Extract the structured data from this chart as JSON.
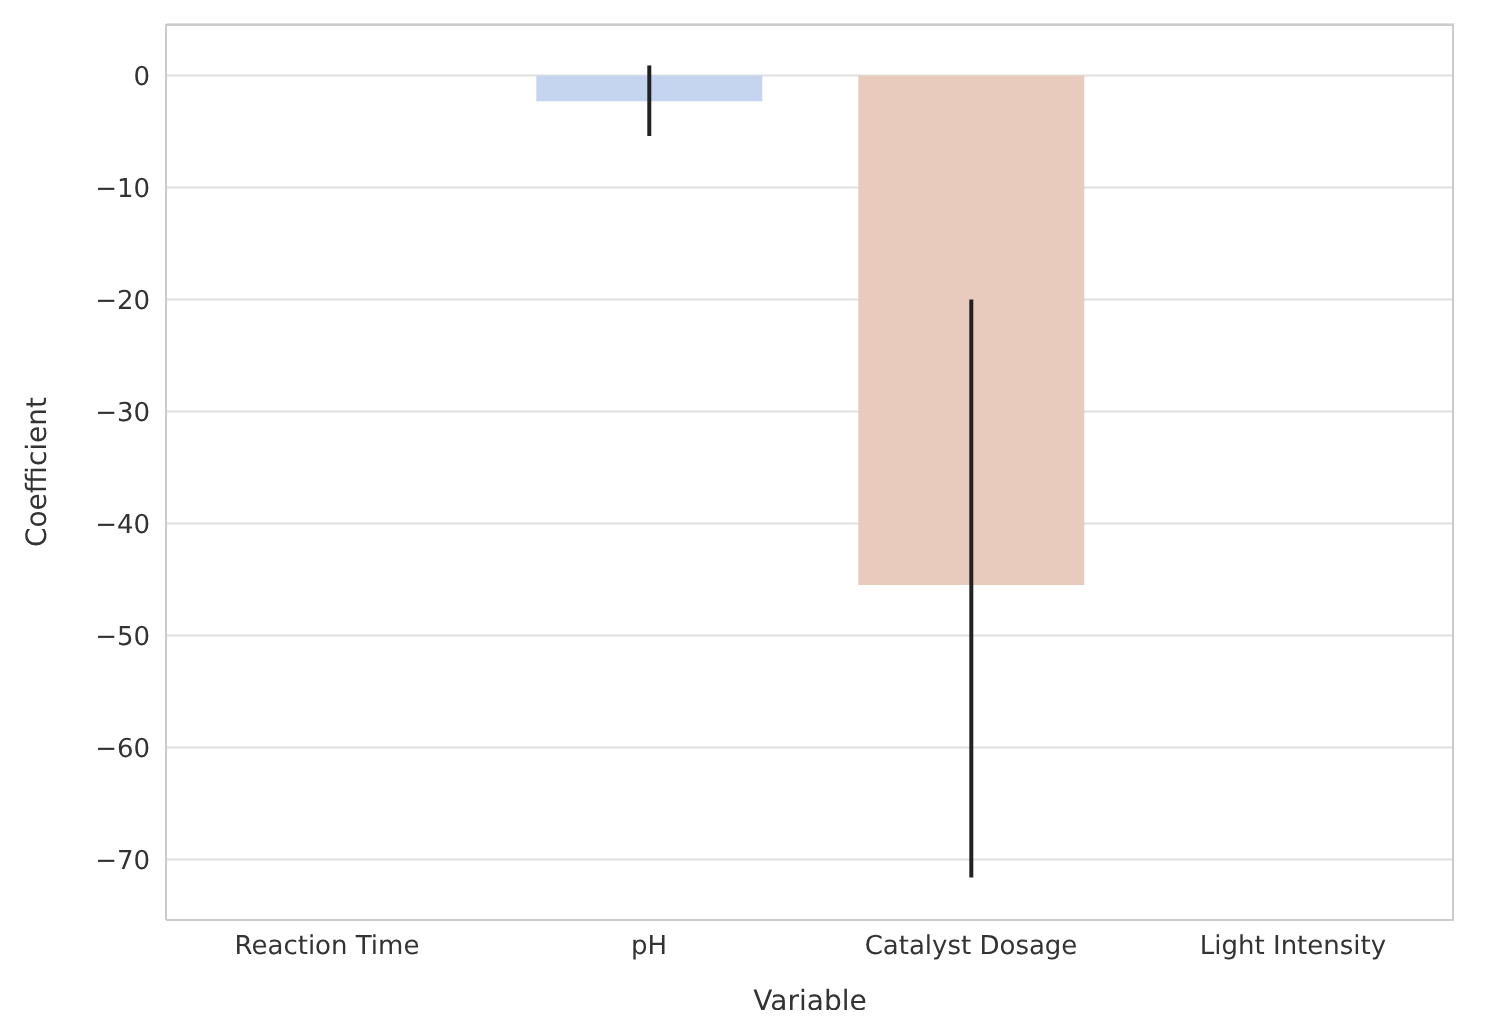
{
  "chart_data": {
    "type": "bar",
    "xlabel": "Variable",
    "ylabel": "Coefficient",
    "categories": [
      "Reaction Time",
      "pH",
      "Catalyst Dosage",
      "Light Intensity"
    ],
    "values": [
      0,
      -2.3,
      -45.5,
      0
    ],
    "errors": [
      null,
      [
        -5.4,
        0.9
      ],
      [
        -71.6,
        -20
      ],
      null
    ],
    "colors": [
      "#a9c4f5",
      "#c5d5ef",
      "#e8cbbd",
      "#f2c6b0"
    ],
    "ylim": [
      -75.4,
      4.6
    ],
    "yticks": [
      {
        "value": -70,
        "label": "−70"
      },
      {
        "value": -60,
        "label": "−60"
      },
      {
        "value": -50,
        "label": "−50"
      },
      {
        "value": -40,
        "label": "−40"
      },
      {
        "value": -30,
        "label": "−30"
      },
      {
        "value": -20,
        "label": "−20"
      },
      {
        "value": -10,
        "label": "−10"
      },
      0
    ],
    "grid": "y"
  }
}
